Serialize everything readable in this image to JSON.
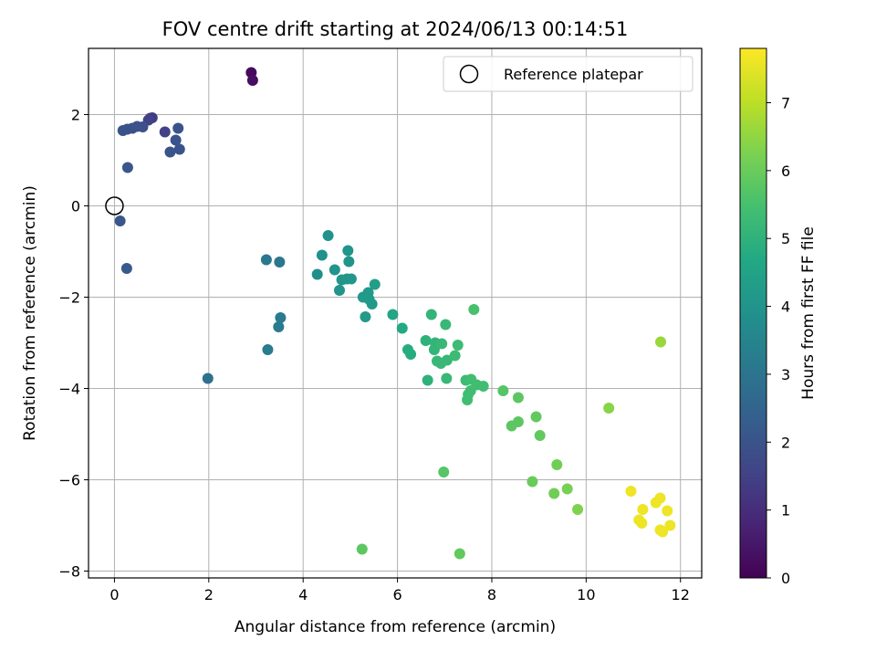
{
  "chart_data": {
    "type": "scatter",
    "title": "FOV centre drift starting at 2024/06/13 00:14:51",
    "xlabel": "Angular distance from reference (arcmin)",
    "ylabel": "Rotation from reference (arcmin)",
    "xlim": [
      -0.55,
      12.45
    ],
    "ylim": [
      -8.15,
      3.45
    ],
    "xticks": [
      0,
      2,
      4,
      6,
      8,
      10,
      12
    ],
    "yticks": [
      -8,
      -6,
      -4,
      -2,
      0,
      2
    ],
    "grid": true,
    "legend": {
      "placement": "top-right",
      "entries": [
        "Reference platepar"
      ]
    },
    "reference_point": {
      "x": 0,
      "y": 0
    },
    "colorbar": {
      "label": "Hours from first FF file",
      "range": [
        0,
        7.8
      ],
      "ticks": [
        0,
        1,
        2,
        3,
        4,
        5,
        6,
        7
      ],
      "colormap": "viridis"
    },
    "series": [
      {
        "points": [
          [
            2.9,
            2.92,
            0.2
          ],
          [
            2.93,
            2.75,
            0.3
          ],
          [
            0.76,
            1.92,
            1.4
          ],
          [
            0.8,
            1.93,
            1.4
          ],
          [
            1.07,
            1.62,
            1.5
          ],
          [
            0.72,
            1.88,
            1.5
          ],
          [
            0.18,
            1.65,
            2.0
          ],
          [
            0.27,
            1.68,
            2.0
          ],
          [
            0.38,
            1.7,
            1.9
          ],
          [
            0.48,
            1.74,
            1.9
          ],
          [
            0.6,
            1.73,
            1.9
          ],
          [
            1.35,
            1.7,
            2.0
          ],
          [
            1.3,
            1.44,
            2.0
          ],
          [
            1.38,
            1.24,
            2.0
          ],
          [
            1.18,
            1.18,
            2.0
          ],
          [
            0.28,
            0.84,
            2.1
          ],
          [
            0.12,
            -0.33,
            2.1
          ],
          [
            0.26,
            -1.37,
            2.2
          ],
          [
            1.98,
            -3.78,
            2.9
          ],
          [
            3.22,
            -1.18,
            3.1
          ],
          [
            3.5,
            -1.23,
            3.1
          ],
          [
            3.52,
            -2.45,
            3.2
          ],
          [
            3.48,
            -2.65,
            3.2
          ],
          [
            3.25,
            -3.15,
            3.2
          ],
          [
            4.53,
            -0.65,
            3.9
          ],
          [
            4.4,
            -1.08,
            3.9
          ],
          [
            4.3,
            -1.5,
            3.8
          ],
          [
            4.67,
            -1.4,
            4.0
          ],
          [
            4.95,
            -0.98,
            4.0
          ],
          [
            4.97,
            -1.22,
            4.0
          ],
          [
            4.82,
            -1.62,
            4.1
          ],
          [
            4.93,
            -1.6,
            4.1
          ],
          [
            5.02,
            -1.6,
            4.1
          ],
          [
            4.77,
            -1.85,
            4.0
          ],
          [
            5.27,
            -2.0,
            4.2
          ],
          [
            5.38,
            -1.9,
            4.2
          ],
          [
            5.52,
            -1.72,
            4.3
          ],
          [
            5.4,
            -2.05,
            4.2
          ],
          [
            5.46,
            -2.15,
            4.2
          ],
          [
            5.32,
            -2.43,
            4.2
          ],
          [
            5.9,
            -2.38,
            4.6
          ],
          [
            6.1,
            -2.68,
            4.7
          ],
          [
            6.22,
            -3.15,
            4.8
          ],
          [
            6.28,
            -3.25,
            4.8
          ],
          [
            6.6,
            -2.95,
            5.0
          ],
          [
            6.72,
            -2.38,
            5.1
          ],
          [
            6.8,
            -3.0,
            5.1
          ],
          [
            6.78,
            -3.15,
            5.1
          ],
          [
            6.84,
            -3.4,
            5.2
          ],
          [
            6.94,
            -3.02,
            5.2
          ],
          [
            6.92,
            -3.45,
            5.2
          ],
          [
            7.02,
            -2.6,
            5.2
          ],
          [
            7.05,
            -3.38,
            5.2
          ],
          [
            7.22,
            -3.28,
            5.3
          ],
          [
            7.28,
            -3.05,
            5.3
          ],
          [
            6.64,
            -3.82,
            5.0
          ],
          [
            7.04,
            -3.78,
            5.2
          ],
          [
            7.45,
            -3.82,
            5.3
          ],
          [
            7.56,
            -3.8,
            5.4
          ],
          [
            7.68,
            -3.92,
            5.4
          ],
          [
            7.82,
            -3.95,
            5.4
          ],
          [
            7.55,
            -4.05,
            5.4
          ],
          [
            7.5,
            -4.13,
            5.4
          ],
          [
            7.48,
            -4.25,
            5.4
          ],
          [
            7.62,
            -2.27,
            5.5
          ],
          [
            8.24,
            -4.05,
            5.7
          ],
          [
            8.56,
            -4.2,
            5.8
          ],
          [
            8.42,
            -4.82,
            5.8
          ],
          [
            8.56,
            -4.73,
            5.8
          ],
          [
            8.94,
            -4.62,
            5.9
          ],
          [
            9.02,
            -5.03,
            5.9
          ],
          [
            8.86,
            -6.04,
            6.0
          ],
          [
            9.32,
            -6.3,
            6.1
          ],
          [
            9.38,
            -5.67,
            6.1
          ],
          [
            9.6,
            -6.2,
            6.2
          ],
          [
            9.82,
            -6.65,
            6.3
          ],
          [
            10.48,
            -4.43,
            6.4
          ],
          [
            11.58,
            -2.98,
            6.6
          ],
          [
            6.98,
            -5.83,
            5.7
          ],
          [
            5.25,
            -7.52,
            5.8
          ],
          [
            7.32,
            -7.62,
            5.9
          ],
          [
            10.95,
            -6.25,
            7.6
          ],
          [
            11.12,
            -6.88,
            7.6
          ],
          [
            11.18,
            -6.95,
            7.6
          ],
          [
            11.2,
            -6.65,
            7.6
          ],
          [
            11.48,
            -6.5,
            7.6
          ],
          [
            11.57,
            -6.4,
            7.6
          ],
          [
            11.72,
            -6.68,
            7.6
          ],
          [
            11.78,
            -7.0,
            7.6
          ],
          [
            11.57,
            -7.1,
            7.6
          ],
          [
            11.62,
            -7.14,
            7.6
          ]
        ]
      }
    ]
  }
}
